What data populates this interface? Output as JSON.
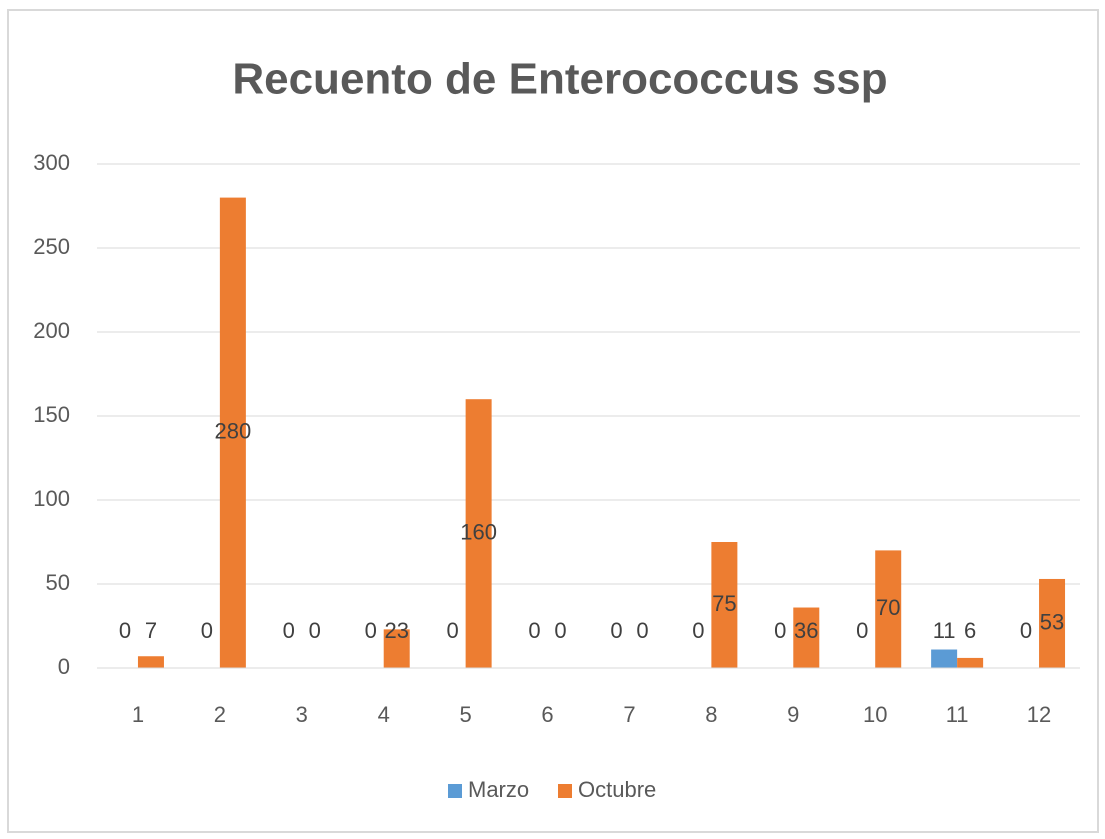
{
  "chart_data": {
    "type": "bar",
    "title": "Recuento de Enterococcus ssp",
    "categories": [
      "1",
      "2",
      "3",
      "4",
      "5",
      "6",
      "7",
      "8",
      "9",
      "10",
      "11",
      "12"
    ],
    "series": [
      {
        "name": "Marzo",
        "color": "#5b9bd5",
        "values": [
          0,
          0,
          0,
          0,
          0,
          0,
          0,
          0,
          0,
          0,
          11,
          0
        ]
      },
      {
        "name": "Octubre",
        "color": "#ed7d31",
        "values": [
          7,
          280,
          0,
          23,
          160,
          0,
          0,
          75,
          36,
          70,
          6,
          53
        ]
      }
    ],
    "ylim": [
      0,
      300
    ],
    "yticks": [
      0,
      50,
      100,
      150,
      200,
      250,
      300
    ],
    "grid": true,
    "legend": "bottom"
  }
}
